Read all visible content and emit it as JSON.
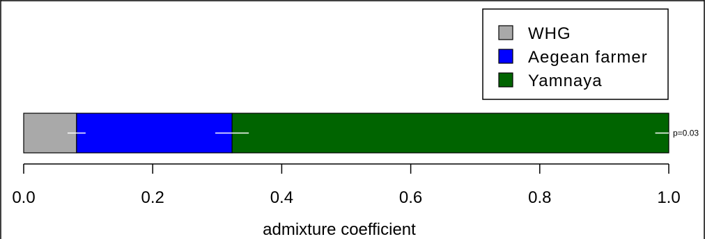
{
  "chart_data": {
    "type": "bar",
    "orientation": "horizontal",
    "stacked": true,
    "xlabel": "admixture coefficient",
    "xlim": [
      0,
      1
    ],
    "xticks": [
      0,
      0.2,
      0.4,
      0.6,
      0.8,
      1
    ],
    "tick_labels": [
      "0.0",
      "0.2",
      "0.4",
      "0.6",
      "0.8",
      "1.0"
    ],
    "series": [
      {
        "name": "WHG",
        "value": 0.082,
        "color": "#a9a9a9",
        "error": [
          0.068,
          0.096
        ]
      },
      {
        "name": "Aegean farmer",
        "value": 0.241,
        "color": "#0000ff",
        "error": [
          0.297,
          0.349
        ]
      },
      {
        "name": "Yamnaya",
        "value": 0.677,
        "color": "#006400",
        "error": [
          0.979,
          1.0
        ]
      }
    ],
    "annotation": "p=0.03",
    "legend_position": "top-right",
    "grid": false
  }
}
